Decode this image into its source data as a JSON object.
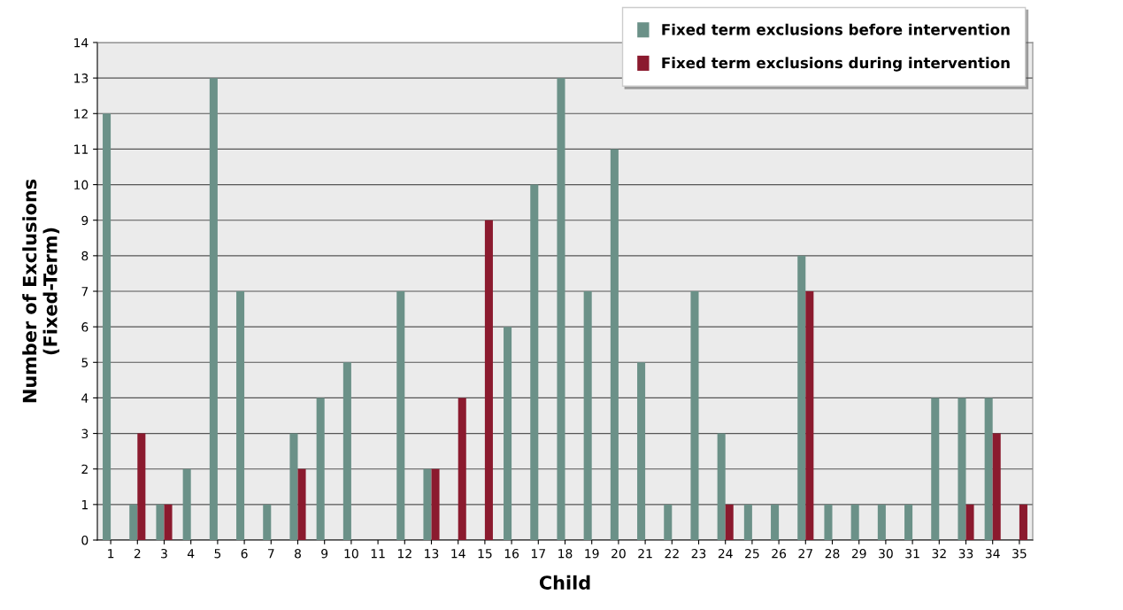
{
  "chart_data": {
    "type": "bar",
    "xlabel": "Child",
    "ylabel": "Number of Exclusions\n(Fixed-Term)",
    "categories": [
      "1",
      "2",
      "3",
      "4",
      "5",
      "6",
      "7",
      "8",
      "9",
      "10",
      "11",
      "12",
      "13",
      "14",
      "15",
      "16",
      "17",
      "18",
      "19",
      "20",
      "21",
      "22",
      "23",
      "24",
      "25",
      "26",
      "27",
      "28",
      "29",
      "30",
      "31",
      "32",
      "33",
      "34",
      "35"
    ],
    "series": [
      {
        "name": "Fixed term exclusions before intervention",
        "color": "#6b9188",
        "values": [
          12,
          1,
          1,
          2,
          13,
          7,
          1,
          3,
          4,
          5,
          0,
          7,
          2,
          0,
          0,
          6,
          10,
          13,
          7,
          11,
          5,
          1,
          7,
          3,
          1,
          1,
          8,
          1,
          1,
          1,
          1,
          4,
          4,
          4,
          0
        ]
      },
      {
        "name": "Fixed term exclusions during intervention",
        "color": "#8b1a2e",
        "values": [
          0,
          3,
          1,
          0,
          0,
          0,
          0,
          2,
          0,
          0,
          0,
          0,
          2,
          4,
          9,
          0,
          0,
          0,
          0,
          0,
          0,
          0,
          0,
          1,
          0,
          0,
          7,
          0,
          0,
          0,
          0,
          0,
          1,
          3,
          1
        ]
      }
    ],
    "ylim": [
      0,
      14
    ],
    "yticks": [
      0,
      1,
      2,
      3,
      4,
      5,
      6,
      7,
      8,
      9,
      10,
      11,
      12,
      13,
      14
    ],
    "grid": "y",
    "legend": "top right"
  }
}
